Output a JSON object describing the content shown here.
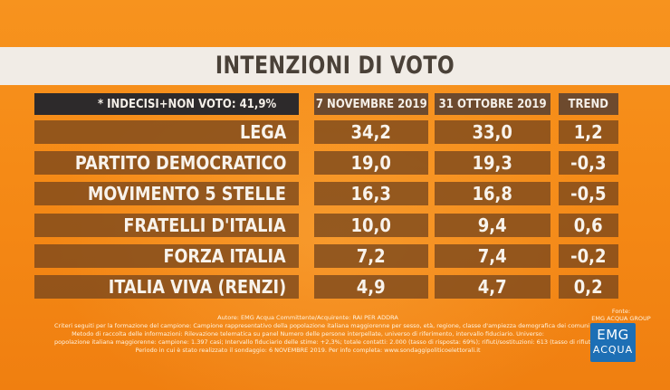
{
  "title": "INTENZIONI DI VOTO",
  "note": "* INDECISI+NON VOTO: 41,9%",
  "chart_data": {
    "type": "table",
    "columns": [
      "7 NOVEMBRE 2019",
      "31 OTTOBRE 2019",
      "TREND"
    ],
    "rows": [
      {
        "party": "LEGA",
        "values": [
          "34,2",
          "33,0",
          "1,2"
        ]
      },
      {
        "party": "PARTITO DEMOCRATICO",
        "values": [
          "19,0",
          "19,3",
          "-0,3"
        ]
      },
      {
        "party": "MOVIMENTO 5 STELLE",
        "values": [
          "16,3",
          "16,8",
          "-0,5"
        ]
      },
      {
        "party": "FRATELLI D'ITALIA",
        "values": [
          "10,0",
          "9,4",
          "0,6"
        ]
      },
      {
        "party": "FORZA ITALIA",
        "values": [
          "7,2",
          "7,4",
          "-0,2"
        ]
      },
      {
        "party": "ITALIA VIVA (RENZI)",
        "values": [
          "4,9",
          "4,7",
          "0,2"
        ]
      }
    ]
  },
  "footer": {
    "lines": [
      "Autore: EMG Acqua Committente/Acquirente: RAI PER ADDRA",
      "Criteri seguiti per la formazione del campione: Campione rappresentativo della popolazione italiana maggiorenne per sesso, età, regione, classe d'ampiezza demografica dei comuni",
      "Metodo di raccolta delle informazioni: Rilevazione telematica su panel Numero delle persone interpellate, universo di riferimento, intervallo fiduciario. Universo:",
      "popolazione italiana maggiorenne: campione: 1.397 casi; Intervallo fiduciario delle stime: +2,3%; totale contatti: 2.000 (tasso di risposta: 69%); rifiuti/sostituzioni: 613 (tasso di rifiuti: 31%).",
      "Periodo in cui è stato realizzato il sondaggio: 6 NOVEMBRE 2019. Per info completa: www.sondaggipoliticoelettorali.it"
    ],
    "source_label": "Fonte:",
    "source_name": "EMG ACQUA GROUP"
  },
  "logo": {
    "line1": "EMG",
    "line2": "ACQUA"
  }
}
